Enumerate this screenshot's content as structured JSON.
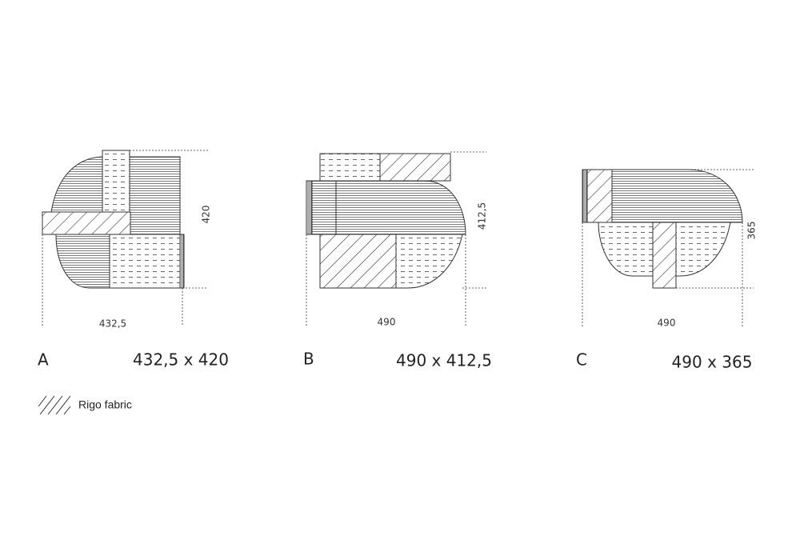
{
  "configurations": [
    {
      "letter": "A",
      "size": "432,5 x 420",
      "width_label": "432,5",
      "depth_label": "420"
    },
    {
      "letter": "B",
      "size": "490 x 412,5",
      "width_label": "490",
      "depth_label": "412,5"
    },
    {
      "letter": "C",
      "size": "490 x 365",
      "width_label": "490",
      "depth_label": "365"
    }
  ],
  "legend": {
    "label": "Rigo fabric"
  }
}
